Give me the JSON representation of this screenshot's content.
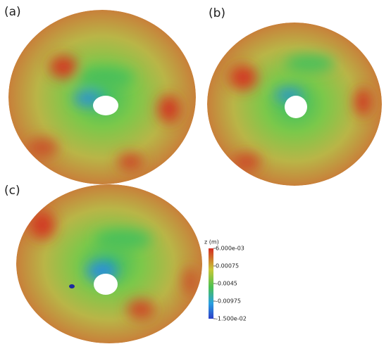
{
  "panels": [
    {
      "label": "(a)"
    },
    {
      "label": "(b)"
    },
    {
      "label": "(c)"
    }
  ],
  "colorbar": {
    "title": "z (m)",
    "range": [
      -0.015,
      0.006
    ],
    "ticks": [
      {
        "value": 0.006,
        "label": "6.000e-03"
      },
      0.00075,
      -0.0045,
      -0.00975,
      {
        "value": -0.015,
        "label": "-1.500e-02"
      }
    ]
  }
}
